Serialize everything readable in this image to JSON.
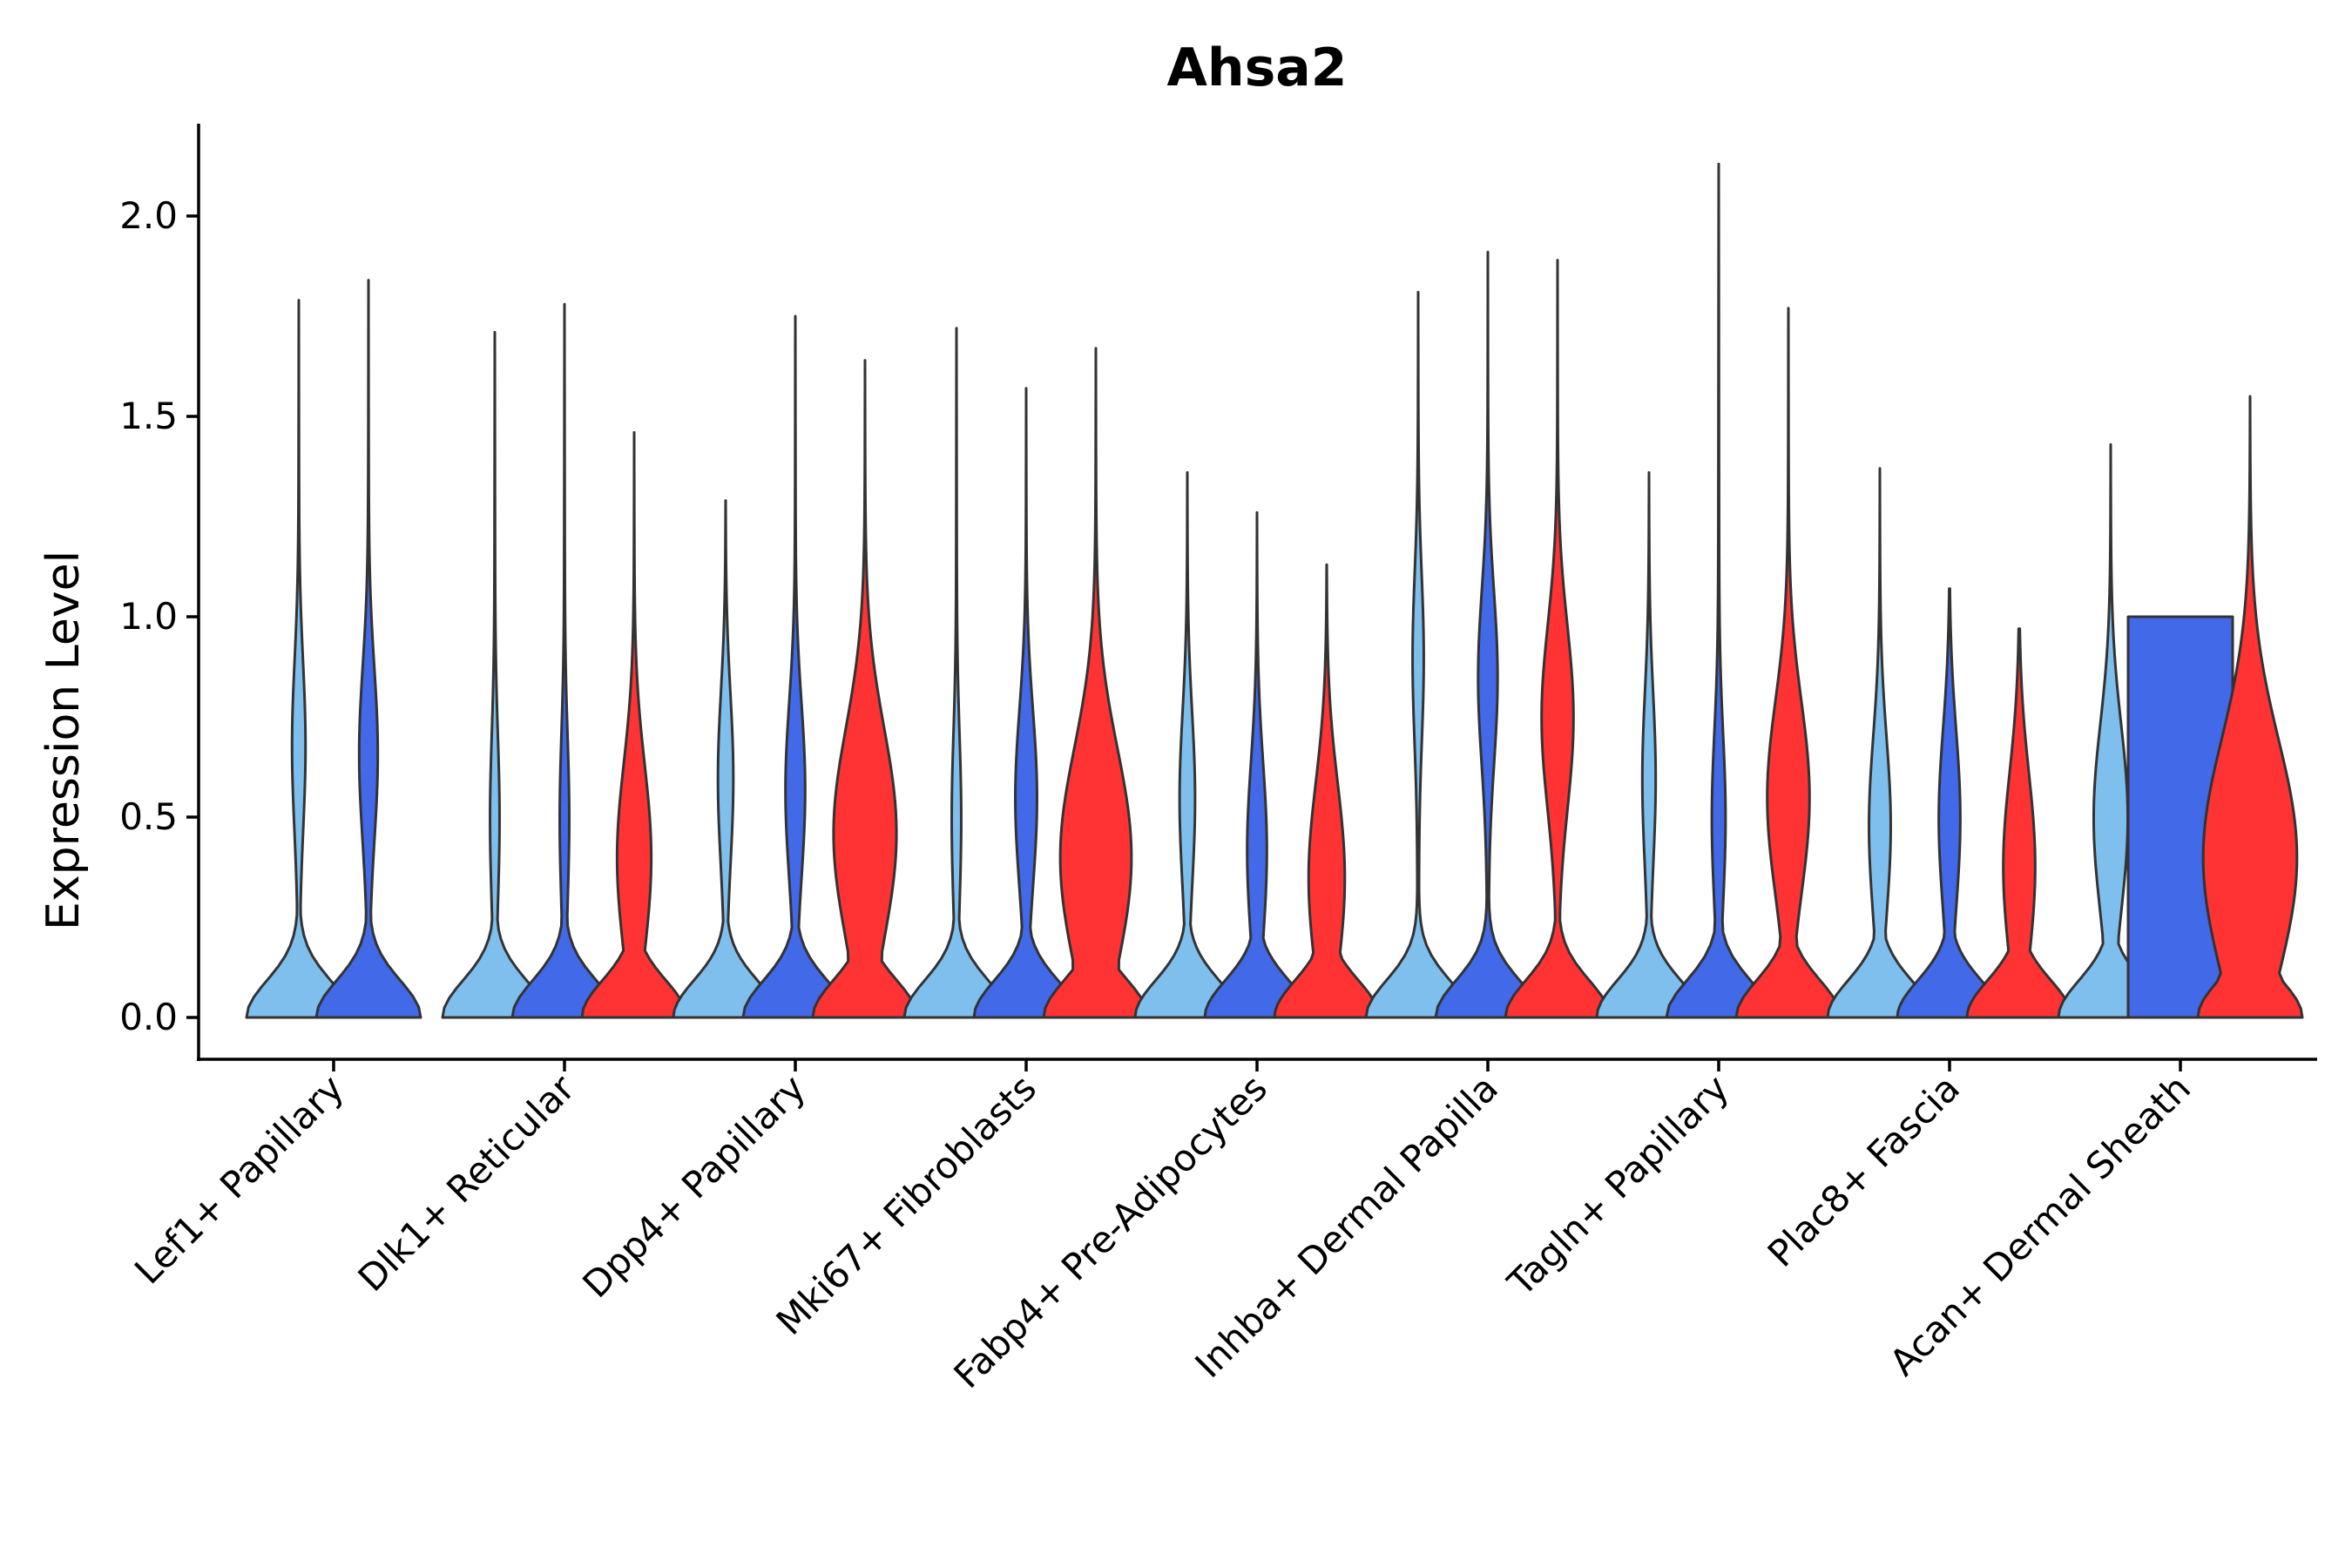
{
  "chart_data": {
    "type": "violin",
    "title": "Ahsa2",
    "xlabel": "",
    "ylabel": "Expression Level",
    "ylim": [
      -0.1,
      2.25
    ],
    "yticks": [
      0.0,
      0.5,
      1.0,
      1.5,
      2.0
    ],
    "ytick_labels": [
      "0.0",
      "0.5",
      "1.0",
      "1.5",
      "2.0"
    ],
    "grid": false,
    "series_colors": [
      "#7fbfee",
      "#4169e8",
      "#ff3333"
    ],
    "categories": [
      "Lef1+ Papillary",
      "Dlk1+ Reticular",
      "Dpp4+ Papillary",
      "Mki67+ Fibroblasts",
      "Fabp4+ Pre-Adipocytes",
      "Inhba+ Dermal Papilla",
      "Tagln+ Papillary",
      "Plac8+ Fascia",
      "Acan+ Dermal Sheath"
    ],
    "groups": [
      {
        "category": "Lef1+ Papillary",
        "violins": [
          {
            "series": 0,
            "max": 1.79,
            "mode2": 0.68,
            "w2": 0.12
          },
          {
            "series": 1,
            "max": 1.84,
            "mode2": 0.66,
            "w2": 0.17
          }
        ]
      },
      {
        "category": "Dlk1+ Reticular",
        "violins": [
          {
            "series": 0,
            "max": 1.71,
            "mode2": 0.5,
            "w2": 0.08
          },
          {
            "series": 1,
            "max": 1.78,
            "mode2": 0.5,
            "w2": 0.08
          },
          {
            "series": 2,
            "max": 1.46,
            "mode2": 0.4,
            "w2": 0.32
          }
        ]
      },
      {
        "category": "Dpp4+ Papillary",
        "violins": [
          {
            "series": 0,
            "max": 1.29,
            "mode2": 0.6,
            "w2": 0.14
          },
          {
            "series": 1,
            "max": 1.75,
            "mode2": 0.57,
            "w2": 0.18
          },
          {
            "series": 2,
            "max": 1.64,
            "mode2": 0.46,
            "w2": 0.6
          }
        ]
      },
      {
        "category": "Mki67+ Fibroblasts",
        "violins": [
          {
            "series": 0,
            "max": 1.72,
            "mode2": 0.5,
            "w2": 0.08
          },
          {
            "series": 1,
            "max": 1.57,
            "mode2": 0.55,
            "w2": 0.2
          },
          {
            "series": 2,
            "max": 1.67,
            "mode2": 0.4,
            "w2": 0.68
          }
        ]
      },
      {
        "category": "Fabp4+ Pre-Adipocytes",
        "violins": [
          {
            "series": 0,
            "max": 1.36,
            "mode2": 0.55,
            "w2": 0.14
          },
          {
            "series": 1,
            "max": 1.26,
            "mode2": 0.42,
            "w2": 0.18
          },
          {
            "series": 2,
            "max": 1.13,
            "mode2": 0.35,
            "w2": 0.34
          }
        ]
      },
      {
        "category": "Inhba+ Dermal Papilla",
        "violins": [
          {
            "series": 0,
            "max": 1.81,
            "mode2": 0.9,
            "w2": 0.1
          },
          {
            "series": 1,
            "max": 1.91,
            "mode2": 0.85,
            "w2": 0.18
          },
          {
            "series": 2,
            "max": 1.89,
            "mode2": 0.75,
            "w2": 0.3
          }
        ]
      },
      {
        "category": "Tagln+ Papillary",
        "violins": [
          {
            "series": 0,
            "max": 1.36,
            "mode2": 0.6,
            "w2": 0.12
          },
          {
            "series": 1,
            "max": 2.13,
            "mode2": 0.5,
            "w2": 0.12
          },
          {
            "series": 2,
            "max": 1.77,
            "mode2": 0.55,
            "w2": 0.4
          }
        ]
      },
      {
        "category": "Plac8+ Fascia",
        "violins": [
          {
            "series": 0,
            "max": 1.37,
            "mode2": 0.48,
            "w2": 0.2
          },
          {
            "series": 1,
            "max": 1.07,
            "mode2": 0.5,
            "w2": 0.2
          },
          {
            "series": 2,
            "max": 0.97,
            "mode2": 0.38,
            "w2": 0.3
          }
        ]
      },
      {
        "category": "Acan+ Dermal Sheath",
        "violins": [
          {
            "series": 0,
            "max": 1.43,
            "mode2": 0.5,
            "w2": 0.32
          },
          {
            "series": 1,
            "max": 1.0,
            "mode2": 0.5,
            "w2": 0.7,
            "flat": true
          },
          {
            "series": 2,
            "max": 1.55,
            "mode2": 0.4,
            "w2": 0.9
          }
        ]
      }
    ]
  }
}
